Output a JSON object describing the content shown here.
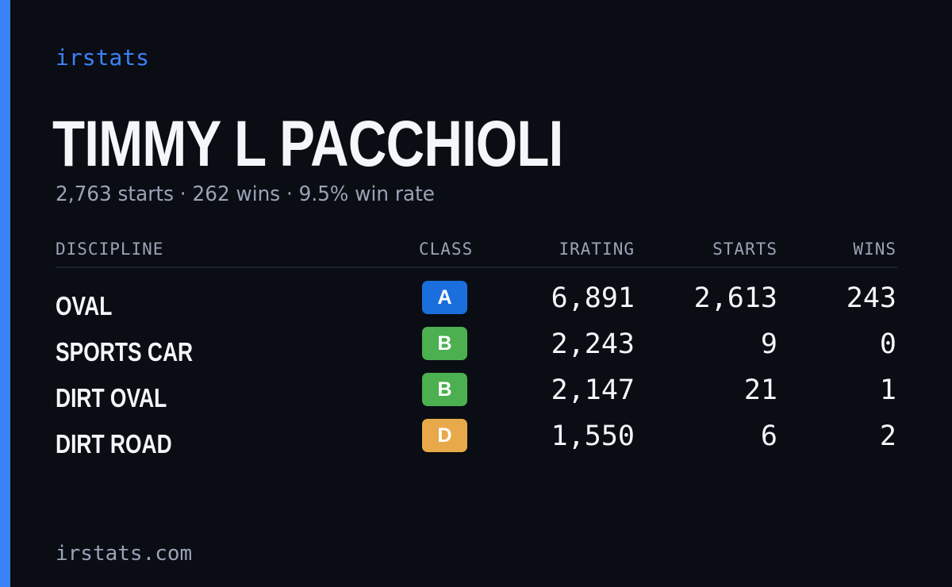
{
  "brand": "irstats",
  "driver": {
    "name": "TIMMY L PACCHIOLI",
    "summary": "2,763 starts · 262 wins · 9.5% win rate"
  },
  "table": {
    "headers": {
      "discipline": "DISCIPLINE",
      "class": "CLASS",
      "irating": "IRATING",
      "starts": "STARTS",
      "wins": "WINS"
    },
    "rows": [
      {
        "discipline": "OVAL",
        "class": "A",
        "class_color": "#1a6fdc",
        "irating": "6,891",
        "starts": "2,613",
        "wins": "243"
      },
      {
        "discipline": "SPORTS CAR",
        "class": "B",
        "class_color": "#4caf50",
        "irating": "2,243",
        "starts": "9",
        "wins": "0"
      },
      {
        "discipline": "DIRT OVAL",
        "class": "B",
        "class_color": "#4caf50",
        "irating": "2,147",
        "starts": "21",
        "wins": "1"
      },
      {
        "discipline": "DIRT ROAD",
        "class": "D",
        "class_color": "#e8a94a",
        "irating": "1,550",
        "starts": "6",
        "wins": "2"
      }
    ]
  },
  "footer": "irstats.com",
  "colors": {
    "background": "#0a0d14",
    "accent": "#3b82f6",
    "text": "#f4f6fa",
    "muted": "#9aa3b5"
  }
}
